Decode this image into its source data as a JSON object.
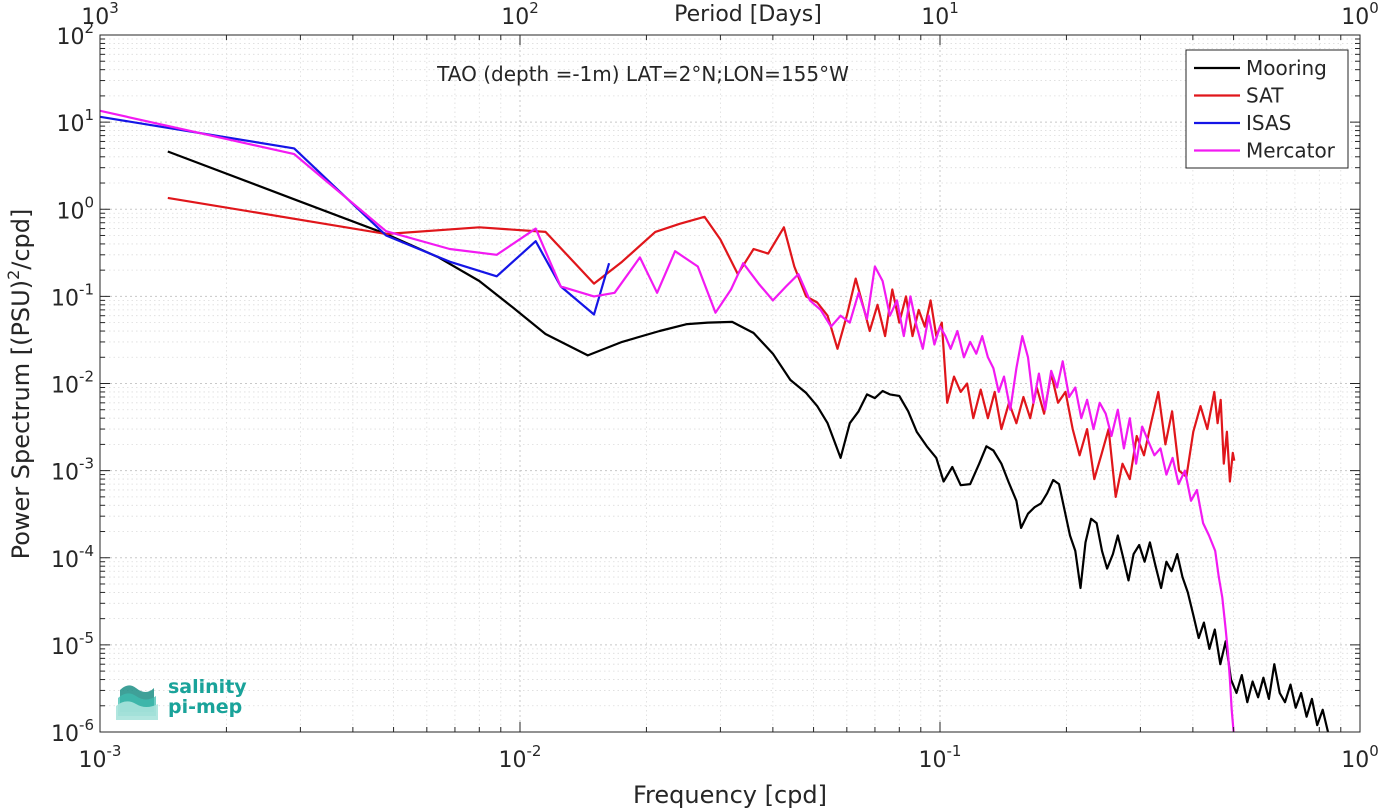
{
  "chart_data": {
    "type": "line",
    "title": "TAO (depth =-1m) LAT=2°N;LON=155°W",
    "xlabel": "Frequency [cpd]",
    "ylabel_main": "Power Spectrum [(PSU)",
    "ylabel_sup": "2",
    "ylabel_end": "/cpd]",
    "top_xlabel": "Period [Days]",
    "x_scale": "log",
    "y_scale": "log",
    "xlim": [
      0.001,
      1
    ],
    "ylim": [
      1e-06,
      100
    ],
    "grid": true,
    "legend_position": "top-right",
    "x_ticks": [
      {
        "base": "10",
        "exp": "-3",
        "value": 0.001
      },
      {
        "base": "10",
        "exp": "-2",
        "value": 0.01
      },
      {
        "base": "10",
        "exp": "-1",
        "value": 0.1
      },
      {
        "base": "10",
        "exp": "0",
        "value": 1
      }
    ],
    "top_ticks": [
      {
        "base": "10",
        "exp": "3",
        "value": 0.001
      },
      {
        "base": "10",
        "exp": "2",
        "value": 0.01
      },
      {
        "base": "10",
        "exp": "1",
        "value": 0.1
      },
      {
        "base": "10",
        "exp": "0",
        "value": 1
      }
    ],
    "y_ticks": [
      {
        "base": "10",
        "exp": "2",
        "value": 100
      },
      {
        "base": "10",
        "exp": "1",
        "value": 10
      },
      {
        "base": "10",
        "exp": "0",
        "value": 1
      },
      {
        "base": "10",
        "exp": "-1",
        "value": 0.1
      },
      {
        "base": "10",
        "exp": "-2",
        "value": 0.01
      },
      {
        "base": "10",
        "exp": "-3",
        "value": 0.001
      },
      {
        "base": "10",
        "exp": "-4",
        "value": 0.0001
      },
      {
        "base": "10",
        "exp": "-5",
        "value": 1e-05
      },
      {
        "base": "10",
        "exp": "-6",
        "value": 1e-06
      }
    ],
    "series": [
      {
        "name": "Mooring",
        "color": "#000000",
        "points": [
          [
            0.00145,
            4.6
          ],
          [
            0.0029,
            1.3
          ],
          [
            0.0048,
            0.52
          ],
          [
            0.0064,
            0.28
          ],
          [
            0.008,
            0.15
          ],
          [
            0.0096,
            0.075
          ],
          [
            0.0115,
            0.037
          ],
          [
            0.0145,
            0.021
          ],
          [
            0.0175,
            0.03
          ],
          [
            0.0215,
            0.04
          ],
          [
            0.025,
            0.048
          ],
          [
            0.028,
            0.05
          ],
          [
            0.032,
            0.051
          ],
          [
            0.036,
            0.038
          ],
          [
            0.04,
            0.022
          ],
          [
            0.044,
            0.011
          ],
          [
            0.048,
            0.0078
          ],
          [
            0.051,
            0.0055
          ],
          [
            0.054,
            0.0035
          ],
          [
            0.056,
            0.0022
          ],
          [
            0.058,
            0.0014
          ],
          [
            0.061,
            0.0035
          ],
          [
            0.064,
            0.0048
          ],
          [
            0.067,
            0.0075
          ],
          [
            0.07,
            0.0068
          ],
          [
            0.073,
            0.0082
          ],
          [
            0.076,
            0.0075
          ],
          [
            0.08,
            0.0072
          ],
          [
            0.084,
            0.0048
          ],
          [
            0.088,
            0.0028
          ],
          [
            0.093,
            0.0019
          ],
          [
            0.098,
            0.0014
          ],
          [
            0.102,
            0.00075
          ],
          [
            0.107,
            0.0011
          ],
          [
            0.112,
            0.00068
          ],
          [
            0.118,
            0.0007
          ],
          [
            0.124,
            0.0012
          ],
          [
            0.129,
            0.0019
          ],
          [
            0.134,
            0.0017
          ],
          [
            0.14,
            0.0012
          ],
          [
            0.146,
            0.00072
          ],
          [
            0.152,
            0.00045
          ],
          [
            0.156,
            0.00022
          ],
          [
            0.162,
            0.00032
          ],
          [
            0.168,
            0.00038
          ],
          [
            0.174,
            0.00042
          ],
          [
            0.18,
            0.00055
          ],
          [
            0.186,
            0.00078
          ],
          [
            0.192,
            0.0007
          ],
          [
            0.198,
            0.00035
          ],
          [
            0.204,
            0.00018
          ],
          [
            0.21,
            0.00012
          ],
          [
            0.216,
            4.5e-05
          ],
          [
            0.222,
            0.00015
          ],
          [
            0.229,
            0.00028
          ],
          [
            0.236,
            0.00025
          ],
          [
            0.243,
            0.00012
          ],
          [
            0.25,
            7.5e-05
          ],
          [
            0.258,
            0.00011
          ],
          [
            0.265,
            0.00018
          ],
          [
            0.273,
            0.0001
          ],
          [
            0.281,
            5.5e-05
          ],
          [
            0.289,
            0.00011
          ],
          [
            0.298,
            0.00014
          ],
          [
            0.307,
            9e-05
          ],
          [
            0.316,
            0.00015
          ],
          [
            0.326,
            8e-05
          ],
          [
            0.336,
            4.5e-05
          ],
          [
            0.346,
            9e-05
          ],
          [
            0.356,
            7e-05
          ],
          [
            0.367,
            0.00011
          ],
          [
            0.378,
            6e-05
          ],
          [
            0.389,
            4e-05
          ],
          [
            0.401,
            2.2e-05
          ],
          [
            0.413,
            1.2e-05
          ],
          [
            0.425,
            1.8e-05
          ],
          [
            0.438,
            9e-06
          ],
          [
            0.451,
            1.5e-05
          ],
          [
            0.465,
            6e-06
          ],
          [
            0.479,
            1.1e-05
          ],
          [
            0.493,
            4e-06
          ],
          [
            0.508,
            2.8e-06
          ],
          [
            0.523,
            4.5e-06
          ],
          [
            0.539,
            2.2e-06
          ],
          [
            0.555,
            3.8e-06
          ],
          [
            0.572,
            2.5e-06
          ],
          [
            0.589,
            4.2e-06
          ],
          [
            0.607,
            2.4e-06
          ],
          [
            0.625,
            6e-06
          ],
          [
            0.644,
            2.8e-06
          ],
          [
            0.663,
            2.2e-06
          ],
          [
            0.683,
            3.5e-06
          ],
          [
            0.703,
            1.9e-06
          ],
          [
            0.724,
            2.8e-06
          ],
          [
            0.746,
            1.5e-06
          ],
          [
            0.768,
            2.4e-06
          ],
          [
            0.791,
            1.2e-06
          ],
          [
            0.815,
            1.8e-06
          ],
          [
            0.839,
            1e-06
          ]
        ]
      },
      {
        "name": "SAT",
        "color": "#e0161b",
        "points": [
          [
            0.00145,
            1.35
          ],
          [
            0.0048,
            0.52
          ],
          [
            0.008,
            0.62
          ],
          [
            0.0115,
            0.55
          ],
          [
            0.015,
            0.14
          ],
          [
            0.0175,
            0.25
          ],
          [
            0.021,
            0.55
          ],
          [
            0.024,
            0.68
          ],
          [
            0.0275,
            0.82
          ],
          [
            0.03,
            0.45
          ],
          [
            0.033,
            0.18
          ],
          [
            0.036,
            0.35
          ],
          [
            0.039,
            0.31
          ],
          [
            0.0425,
            0.62
          ],
          [
            0.045,
            0.22
          ],
          [
            0.048,
            0.1
          ],
          [
            0.051,
            0.085
          ],
          [
            0.054,
            0.06
          ],
          [
            0.057,
            0.025
          ],
          [
            0.06,
            0.06
          ],
          [
            0.063,
            0.16
          ],
          [
            0.066,
            0.07
          ],
          [
            0.068,
            0.04
          ],
          [
            0.071,
            0.08
          ],
          [
            0.074,
            0.035
          ],
          [
            0.077,
            0.12
          ],
          [
            0.08,
            0.05
          ],
          [
            0.083,
            0.1
          ],
          [
            0.086,
            0.035
          ],
          [
            0.089,
            0.07
          ],
          [
            0.092,
            0.045
          ],
          [
            0.095,
            0.09
          ],
          [
            0.098,
            0.035
          ],
          [
            0.101,
            0.05
          ],
          [
            0.104,
            0.006
          ],
          [
            0.108,
            0.012
          ],
          [
            0.112,
            0.008
          ],
          [
            0.116,
            0.01
          ],
          [
            0.12,
            0.004
          ],
          [
            0.125,
            0.0085
          ],
          [
            0.13,
            0.004
          ],
          [
            0.135,
            0.008
          ],
          [
            0.14,
            0.003
          ],
          [
            0.146,
            0.006
          ],
          [
            0.152,
            0.0035
          ],
          [
            0.158,
            0.007
          ],
          [
            0.164,
            0.004
          ],
          [
            0.17,
            0.009
          ],
          [
            0.177,
            0.0045
          ],
          [
            0.184,
            0.013
          ],
          [
            0.191,
            0.006
          ],
          [
            0.199,
            0.008
          ],
          [
            0.207,
            0.003
          ],
          [
            0.215,
            0.0015
          ],
          [
            0.224,
            0.003
          ],
          [
            0.233,
            0.0008
          ],
          [
            0.242,
            0.0015
          ],
          [
            0.252,
            0.003
          ],
          [
            0.262,
            0.0005
          ],
          [
            0.272,
            0.0012
          ],
          [
            0.283,
            0.0008
          ],
          [
            0.294,
            0.0025
          ],
          [
            0.306,
            0.0015
          ],
          [
            0.318,
            0.0035
          ],
          [
            0.331,
            0.008
          ],
          [
            0.344,
            0.002
          ],
          [
            0.357,
            0.0048
          ],
          [
            0.371,
            0.001
          ],
          [
            0.386,
            0.00085
          ],
          [
            0.401,
            0.0028
          ],
          [
            0.417,
            0.0055
          ],
          [
            0.433,
            0.003
          ],
          [
            0.45,
            0.008
          ],
          [
            0.458,
            0.0035
          ],
          [
            0.466,
            0.0065
          ],
          [
            0.474,
            0.0012
          ],
          [
            0.482,
            0.0028
          ],
          [
            0.49,
            0.00075
          ],
          [
            0.498,
            0.0016
          ],
          [
            0.502,
            0.0013
          ]
        ]
      },
      {
        "name": "ISAS",
        "color": "#1515e6",
        "points": [
          [
            0.001,
            11.5
          ],
          [
            0.0029,
            5.0
          ],
          [
            0.0048,
            0.5
          ],
          [
            0.0068,
            0.25
          ],
          [
            0.0088,
            0.17
          ],
          [
            0.0109,
            0.43
          ],
          [
            0.0125,
            0.13
          ],
          [
            0.015,
            0.062
          ],
          [
            0.0163,
            0.24
          ]
        ]
      },
      {
        "name": "Mercator",
        "color": "#f21af2",
        "points": [
          [
            0.001,
            13.5
          ],
          [
            0.0029,
            4.3
          ],
          [
            0.0048,
            0.56
          ],
          [
            0.0068,
            0.35
          ],
          [
            0.0088,
            0.3
          ],
          [
            0.0109,
            0.6
          ],
          [
            0.0125,
            0.13
          ],
          [
            0.015,
            0.1
          ],
          [
            0.0168,
            0.11
          ],
          [
            0.0193,
            0.28
          ],
          [
            0.0212,
            0.11
          ],
          [
            0.0234,
            0.33
          ],
          [
            0.0265,
            0.22
          ],
          [
            0.0292,
            0.065
          ],
          [
            0.0318,
            0.12
          ],
          [
            0.034,
            0.24
          ],
          [
            0.037,
            0.14
          ],
          [
            0.04,
            0.09
          ],
          [
            0.043,
            0.13
          ],
          [
            0.046,
            0.18
          ],
          [
            0.049,
            0.09
          ],
          [
            0.052,
            0.07
          ],
          [
            0.055,
            0.045
          ],
          [
            0.058,
            0.06
          ],
          [
            0.061,
            0.05
          ],
          [
            0.064,
            0.11
          ],
          [
            0.067,
            0.055
          ],
          [
            0.07,
            0.22
          ],
          [
            0.073,
            0.15
          ],
          [
            0.076,
            0.06
          ],
          [
            0.079,
            0.09
          ],
          [
            0.082,
            0.035
          ],
          [
            0.085,
            0.1
          ],
          [
            0.088,
            0.045
          ],
          [
            0.091,
            0.025
          ],
          [
            0.094,
            0.06
          ],
          [
            0.097,
            0.028
          ],
          [
            0.1,
            0.045
          ],
          [
            0.103,
            0.035
          ],
          [
            0.106,
            0.025
          ],
          [
            0.11,
            0.04
          ],
          [
            0.114,
            0.02
          ],
          [
            0.118,
            0.03
          ],
          [
            0.122,
            0.022
          ],
          [
            0.126,
            0.035
          ],
          [
            0.13,
            0.02
          ],
          [
            0.134,
            0.015
          ],
          [
            0.138,
            0.008
          ],
          [
            0.142,
            0.012
          ],
          [
            0.147,
            0.005
          ],
          [
            0.152,
            0.015
          ],
          [
            0.157,
            0.035
          ],
          [
            0.162,
            0.02
          ],
          [
            0.167,
            0.006
          ],
          [
            0.172,
            0.013
          ],
          [
            0.178,
            0.005
          ],
          [
            0.184,
            0.014
          ],
          [
            0.19,
            0.009
          ],
          [
            0.196,
            0.018
          ],
          [
            0.203,
            0.007
          ],
          [
            0.21,
            0.009
          ],
          [
            0.217,
            0.004
          ],
          [
            0.224,
            0.0065
          ],
          [
            0.232,
            0.003
          ],
          [
            0.24,
            0.006
          ],
          [
            0.248,
            0.0045
          ],
          [
            0.256,
            0.0025
          ],
          [
            0.265,
            0.005
          ],
          [
            0.274,
            0.0018
          ],
          [
            0.283,
            0.004
          ],
          [
            0.293,
            0.0012
          ],
          [
            0.303,
            0.0032
          ],
          [
            0.313,
            0.0022
          ],
          [
            0.324,
            0.0015
          ],
          [
            0.335,
            0.0018
          ],
          [
            0.346,
            0.0009
          ],
          [
            0.358,
            0.0014
          ],
          [
            0.37,
            0.0007
          ],
          [
            0.383,
            0.001
          ],
          [
            0.396,
            0.00045
          ],
          [
            0.409,
            0.0006
          ],
          [
            0.423,
            0.00025
          ],
          [
            0.437,
            0.00018
          ],
          [
            0.452,
            0.00012
          ],
          [
            0.461,
            6e-05
          ],
          [
            0.47,
            3.5e-05
          ],
          [
            0.479,
            1.5e-05
          ],
          [
            0.485,
            8e-06
          ],
          [
            0.49,
            4e-06
          ],
          [
            0.495,
            1.8e-06
          ],
          [
            0.5,
            1e-06
          ]
        ]
      }
    ]
  },
  "logo": {
    "line1": "salinity",
    "line2": "pi-mep",
    "color": "#1aa39a"
  }
}
